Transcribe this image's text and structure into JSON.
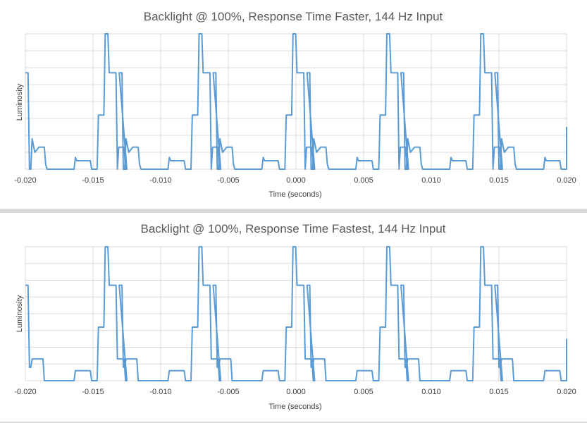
{
  "chart_data": [
    {
      "type": "line",
      "title": "Backlight @ 100%, Response Time Faster, 144 Hz Input",
      "xlabel": "Time (seconds)",
      "ylabel": "Luminosity",
      "xlim": [
        -0.02,
        0.02
      ],
      "ylim": [
        0,
        8
      ],
      "x_ticks": [
        -0.02,
        -0.015,
        -0.01,
        -0.005,
        0,
        0.005,
        0.01,
        0.015,
        0.02
      ],
      "x_tick_labels": [
        "-0.020",
        "-0.015",
        "-0.010",
        "-0.005",
        "0.000",
        "0.005",
        "0.010",
        "0.015",
        "0.020"
      ],
      "y_gridlines": [
        1,
        2,
        3,
        4,
        5,
        6,
        7,
        8
      ],
      "grid": true,
      "legend": "none",
      "color": "#5b9bd5",
      "period_seconds": 0.00694,
      "first_cycle_x": [
        -0.02,
        -0.0198,
        -0.0197,
        -0.0196,
        -0.0195,
        -0.0193,
        -0.0191,
        -0.019,
        -0.0189,
        -0.0188,
        -0.0187,
        -0.0186,
        -0.0185,
        -0.0184,
        -0.0183,
        -0.0164,
        -0.0163,
        -0.0162,
        -0.0161,
        -0.016,
        -0.0159,
        -0.0152,
        -0.0151,
        -0.015,
        -0.0149,
        -0.0148,
        -0.0147,
        -0.0146,
        -0.0145,
        -0.0144,
        -0.0143,
        -0.0142,
        -0.0141,
        -0.014,
        -0.0139,
        -0.0138,
        -0.0137,
        -0.0136,
        -0.0135,
        -0.0134,
        -0.0133,
        -0.0132,
        -0.0131,
        -0.013,
        -0.0129,
        -0.0128,
        -0.0127,
        -0.0126,
        -0.0125
      ],
      "first_cycle_y": [
        5.7,
        5.7,
        0.0,
        0.0,
        1.8,
        1.0,
        1.2,
        1.3,
        1.3,
        1.3,
        1.3,
        1.3,
        0.3,
        0.0,
        0.0,
        0.0,
        0.7,
        0.5,
        0.5,
        0.5,
        0.5,
        0.5,
        0.0,
        0.0,
        0.0,
        0.0,
        0.0,
        3.2,
        3.2,
        3.2,
        3.2,
        3.2,
        8.0,
        8.0,
        8.0,
        5.7,
        5.7,
        5.7,
        5.7,
        5.7,
        5.7,
        0.0,
        1.3,
        1.3,
        1.3,
        1.3,
        1.3,
        0.0,
        0.0
      ]
    },
    {
      "type": "line",
      "title": "Backlight @ 100%, Response Time Fastest, 144 Hz Input",
      "xlabel": "Time (seconds)",
      "ylabel": "Luminosity",
      "xlim": [
        -0.02,
        0.02
      ],
      "ylim": [
        0,
        8
      ],
      "x_ticks": [
        -0.02,
        -0.015,
        -0.01,
        -0.005,
        0,
        0.005,
        0.01,
        0.015,
        0.02
      ],
      "x_tick_labels": [
        "-0.020",
        "-0.015",
        "-0.010",
        "-0.005",
        "0.000",
        "0.005",
        "0.010",
        "0.015",
        "0.020"
      ],
      "y_gridlines": [
        1,
        2,
        3,
        4,
        5,
        6,
        7,
        8
      ],
      "grid": true,
      "legend": "none",
      "color": "#5b9bd5",
      "period_seconds": 0.00694,
      "first_cycle_x": [
        -0.02,
        -0.0198,
        -0.0197,
        -0.0196,
        -0.0195,
        -0.0193,
        -0.0191,
        -0.0189,
        -0.0188,
        -0.0187,
        -0.0186,
        -0.0185,
        -0.0184,
        -0.0164,
        -0.0163,
        -0.0162,
        -0.0161,
        -0.016,
        -0.0159,
        -0.0152,
        -0.0151,
        -0.015,
        -0.0149,
        -0.0148,
        -0.0147,
        -0.0146,
        -0.0145,
        -0.0144,
        -0.0143,
        -0.0142,
        -0.0141,
        -0.014,
        -0.0139,
        -0.0138,
        -0.0137,
        -0.0136,
        -0.0135,
        -0.0134,
        -0.0133,
        -0.0132,
        -0.0131,
        -0.013,
        -0.0129,
        -0.0128,
        -0.0127,
        -0.0126,
        -0.0125
      ],
      "first_cycle_y": [
        5.7,
        5.7,
        0.8,
        0.8,
        1.3,
        1.3,
        1.3,
        1.3,
        1.3,
        1.3,
        0.0,
        0.0,
        0.0,
        0.0,
        0.6,
        0.6,
        0.6,
        0.6,
        0.6,
        0.6,
        0.0,
        0.0,
        0.0,
        0.0,
        0.0,
        3.2,
        3.2,
        3.2,
        3.2,
        3.2,
        8.0,
        8.0,
        8.0,
        5.7,
        5.7,
        5.7,
        5.7,
        5.7,
        5.7,
        1.3,
        1.3,
        1.3,
        1.3,
        1.3,
        1.3,
        0.0,
        0.0
      ]
    }
  ]
}
